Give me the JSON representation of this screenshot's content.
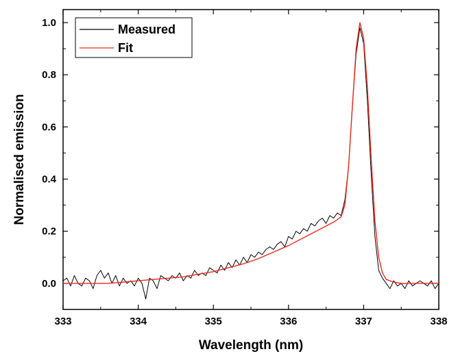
{
  "chart_data": {
    "type": "line",
    "title": "",
    "xlabel": "Wavelength (nm)",
    "ylabel": "Normalised emission",
    "xlim": [
      333,
      338
    ],
    "ylim": [
      -0.1,
      1.05
    ],
    "xticks": [
      333,
      334,
      335,
      336,
      337,
      338
    ],
    "xtick_labels": [
      "333",
      "334",
      "335",
      "336",
      "337",
      "338"
    ],
    "yticks": [
      0.0,
      0.2,
      0.4,
      0.6,
      0.8,
      1.0
    ],
    "ytick_labels": [
      "0.0",
      "0.2",
      "0.4",
      "0.6",
      "0.8",
      "1.0"
    ],
    "grid": false,
    "legend_position": "top-left",
    "series": [
      {
        "name": "Measured",
        "color": "#000000",
        "x": [
          333.0,
          333.05,
          333.1,
          333.15,
          333.2,
          333.25,
          333.3,
          333.35,
          333.4,
          333.45,
          333.5,
          333.55,
          333.6,
          333.65,
          333.7,
          333.75,
          333.8,
          333.85,
          333.9,
          333.95,
          334.0,
          334.05,
          334.1,
          334.15,
          334.2,
          334.25,
          334.3,
          334.35,
          334.4,
          334.45,
          334.5,
          334.55,
          334.6,
          334.65,
          334.7,
          334.75,
          334.8,
          334.85,
          334.9,
          334.95,
          335.0,
          335.05,
          335.1,
          335.15,
          335.2,
          335.25,
          335.3,
          335.35,
          335.4,
          335.45,
          335.5,
          335.55,
          335.6,
          335.65,
          335.7,
          335.75,
          335.8,
          335.85,
          335.9,
          335.95,
          336.0,
          336.05,
          336.1,
          336.15,
          336.2,
          336.25,
          336.3,
          336.35,
          336.4,
          336.45,
          336.5,
          336.55,
          336.6,
          336.65,
          336.7,
          336.75,
          336.8,
          336.85,
          336.9,
          336.95,
          337.0,
          337.05,
          337.1,
          337.15,
          337.2,
          337.25,
          337.3,
          337.35,
          337.4,
          337.45,
          337.5,
          337.55,
          337.6,
          337.65,
          337.7,
          337.75,
          337.8,
          337.85,
          337.9,
          337.95,
          338.0
        ],
        "y": [
          0.01,
          0.02,
          -0.01,
          0.03,
          0.0,
          -0.01,
          0.02,
          0.01,
          -0.02,
          0.03,
          0.05,
          0.02,
          0.04,
          0.0,
          0.03,
          -0.01,
          0.02,
          0.0,
          0.01,
          -0.01,
          0.02,
          0.0,
          -0.06,
          0.02,
          0.01,
          -0.02,
          0.03,
          0.02,
          0.01,
          0.03,
          0.02,
          0.04,
          0.01,
          0.03,
          0.02,
          0.05,
          0.03,
          0.04,
          0.03,
          0.06,
          0.05,
          0.04,
          0.07,
          0.05,
          0.08,
          0.06,
          0.09,
          0.07,
          0.1,
          0.08,
          0.11,
          0.1,
          0.12,
          0.11,
          0.13,
          0.14,
          0.13,
          0.15,
          0.16,
          0.14,
          0.18,
          0.17,
          0.2,
          0.19,
          0.21,
          0.2,
          0.23,
          0.22,
          0.24,
          0.25,
          0.23,
          0.26,
          0.25,
          0.27,
          0.26,
          0.32,
          0.45,
          0.68,
          0.88,
          0.98,
          0.92,
          0.7,
          0.42,
          0.18,
          0.05,
          0.02,
          0.0,
          -0.02,
          0.01,
          -0.01,
          0.0,
          -0.02,
          0.01,
          -0.01,
          0.0,
          0.01,
          0.0,
          -0.01,
          0.01,
          -0.02,
          0.0
        ]
      },
      {
        "name": "Fit",
        "color": "#e8281f",
        "x": [
          333.0,
          333.2,
          333.4,
          333.6,
          333.8,
          334.0,
          334.2,
          334.4,
          334.6,
          334.8,
          335.0,
          335.2,
          335.4,
          335.6,
          335.8,
          336.0,
          336.2,
          336.4,
          336.5,
          336.6,
          336.7,
          336.75,
          336.8,
          336.85,
          336.9,
          336.95,
          337.0,
          337.05,
          337.1,
          337.15,
          337.2,
          337.25,
          337.3,
          337.4,
          337.5,
          337.6,
          337.8,
          338.0
        ],
        "y": [
          0.0,
          0.0,
          0.0,
          0.0,
          0.005,
          0.01,
          0.015,
          0.02,
          0.025,
          0.035,
          0.045,
          0.06,
          0.075,
          0.095,
          0.12,
          0.145,
          0.175,
          0.205,
          0.22,
          0.235,
          0.255,
          0.3,
          0.45,
          0.68,
          0.9,
          1.0,
          0.94,
          0.75,
          0.48,
          0.24,
          0.1,
          0.04,
          0.015,
          0.005,
          0.0,
          0.0,
          0.0,
          0.0
        ]
      }
    ]
  }
}
